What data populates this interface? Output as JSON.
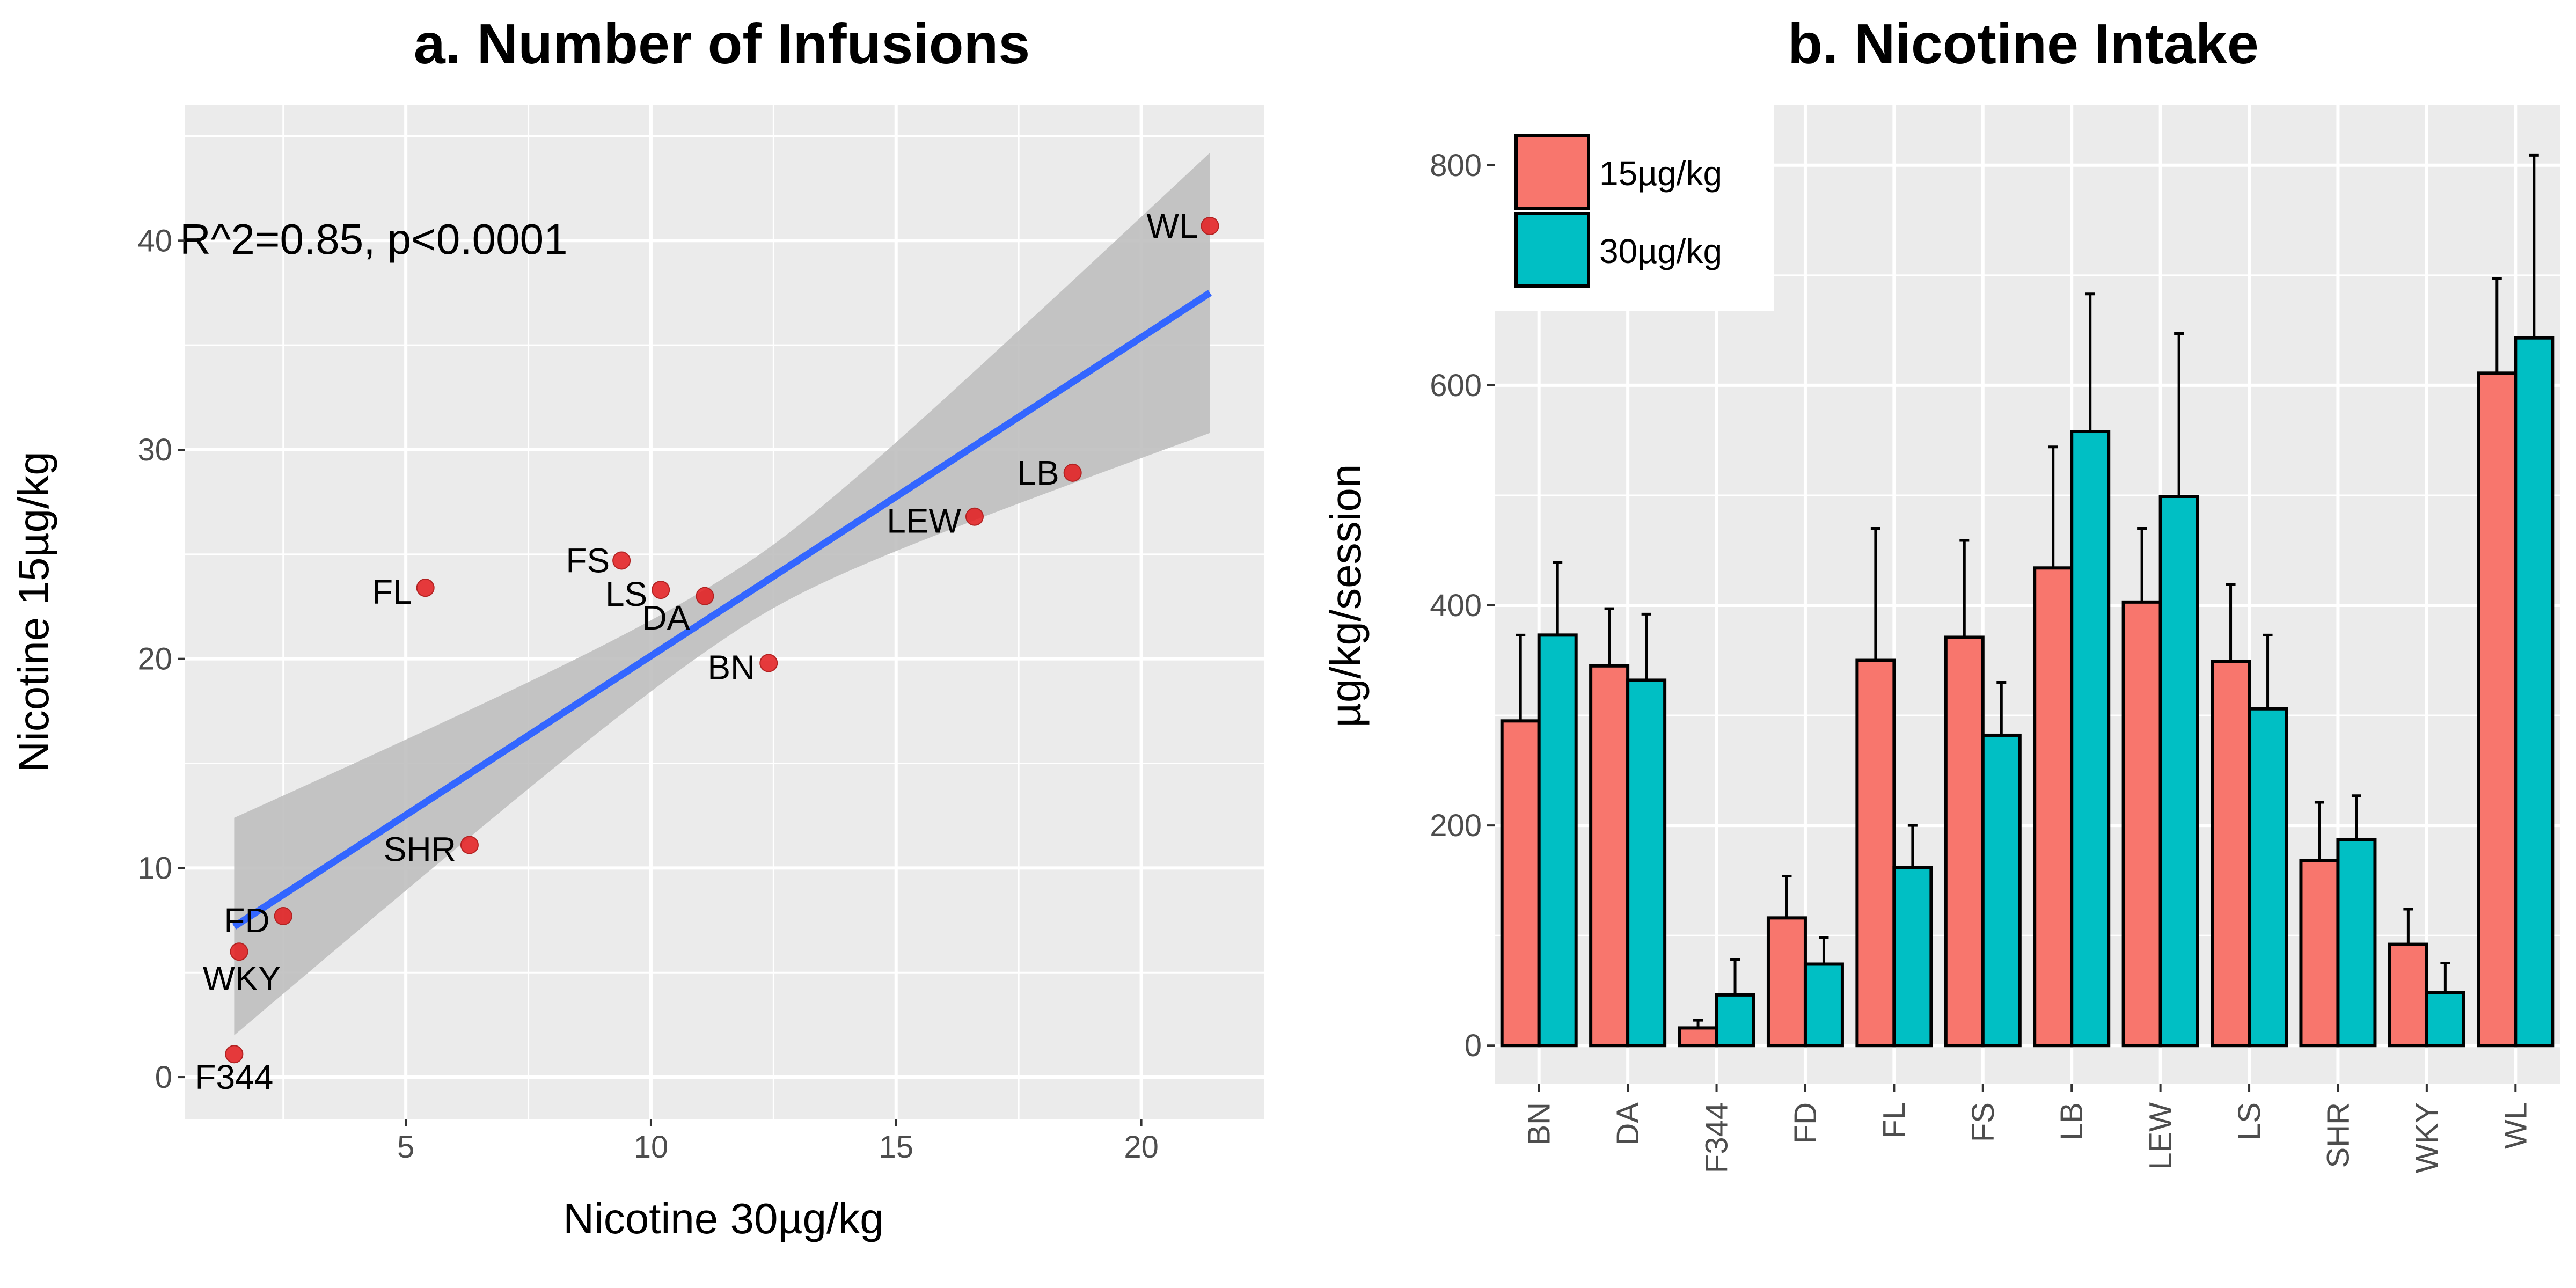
{
  "chart_data": [
    {
      "type": "scatter",
      "title": "a. Number of Infusions",
      "xlabel": "Nicotine 30µg/kg",
      "ylabel": "Nicotine 15µg/kg",
      "xlim": [
        0.5,
        22.5
      ],
      "ylim": [
        -2,
        46.5
      ],
      "xticks": [
        5,
        10,
        15,
        20
      ],
      "yticks": [
        0,
        10,
        20,
        30,
        40
      ],
      "annotation": "R^2=0.85, p<0.0001",
      "points": [
        {
          "label": "BN",
          "x": 12.4,
          "y": 19.8
        },
        {
          "label": "DA",
          "x": 11.1,
          "y": 23.0
        },
        {
          "label": "F344",
          "x": 1.5,
          "y": 1.1
        },
        {
          "label": "FD",
          "x": 2.5,
          "y": 7.7
        },
        {
          "label": "FL",
          "x": 5.4,
          "y": 23.4
        },
        {
          "label": "FS",
          "x": 9.4,
          "y": 24.7
        },
        {
          "label": "LB",
          "x": 18.6,
          "y": 28.9
        },
        {
          "label": "LEW",
          "x": 16.6,
          "y": 26.8
        },
        {
          "label": "LS",
          "x": 10.2,
          "y": 23.3
        },
        {
          "label": "SHR",
          "x": 6.3,
          "y": 11.1
        },
        {
          "label": "WKY",
          "x": 1.6,
          "y": 6.0
        },
        {
          "label": "WL",
          "x": 21.4,
          "y": 40.7
        }
      ],
      "fit": {
        "x": [
          1.5,
          21.4
        ],
        "y": [
          7.2,
          37.5
        ],
        "band_lower": [
          2.0,
          30.8
        ],
        "band_upper": [
          12.4,
          44.2
        ]
      },
      "colors": {
        "point": "#e41a1c",
        "fit": "#3366ff",
        "band": "#bfbfbf",
        "panel": "#ebebeb",
        "grid": "#ffffff"
      }
    },
    {
      "type": "bar",
      "title": "b. Nicotine Intake",
      "xlabel": "",
      "ylabel": "µg/kg/session",
      "ylim": [
        -35,
        855
      ],
      "yticks": [
        0,
        200,
        400,
        600,
        800
      ],
      "categories": [
        "BN",
        "DA",
        "F344",
        "FD",
        "FL",
        "FS",
        "LB",
        "LEW",
        "LS",
        "SHR",
        "WKY",
        "WL"
      ],
      "series": [
        {
          "name": "15µg/kg",
          "color": "#f8766d",
          "values": [
            295,
            345,
            16,
            116,
            350,
            371,
            434,
            403,
            349,
            168,
            92,
            611
          ],
          "errors": [
            78,
            52,
            7,
            38,
            120,
            88,
            110,
            67,
            70,
            53,
            32,
            86
          ]
        },
        {
          "name": "30µg/kg",
          "color": "#00bfc4",
          "values": [
            373,
            332,
            46,
            74,
            162,
            282,
            558,
            499,
            306,
            187,
            48,
            643
          ],
          "errors": [
            66,
            60,
            32,
            24,
            38,
            48,
            125,
            148,
            67,
            40,
            27,
            166
          ]
        }
      ],
      "legend": "top-left"
    }
  ]
}
